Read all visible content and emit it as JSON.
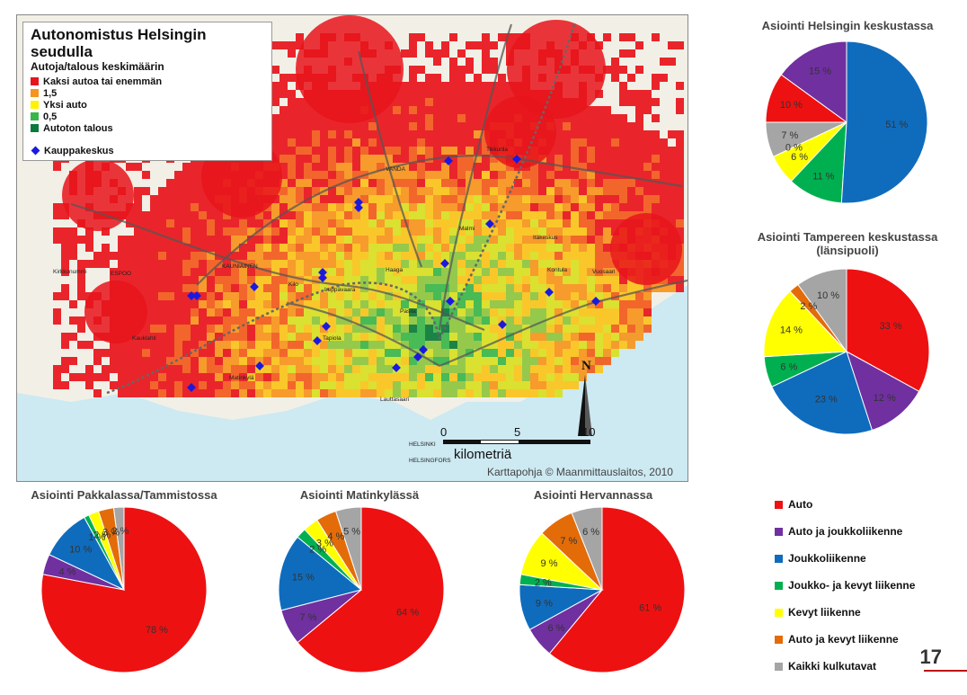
{
  "map": {
    "title": "Autonomistus Helsingin seudulla",
    "subtitle": "Autoja/talous keskimäärin",
    "legend": [
      {
        "label": "Kaksi autoa tai enemmän",
        "color": "#e8141b"
      },
      {
        "label": "1,5",
        "color": "#f7941d"
      },
      {
        "label": "Yksi auto",
        "color": "#fff200"
      },
      {
        "label": "0,5",
        "color": "#39b54a"
      },
      {
        "label": "Autoton talous",
        "color": "#0a7a3a"
      }
    ],
    "mall_label": "Kauppakeskus",
    "mall_color": "#1a1adf",
    "scale": {
      "zero": "0",
      "five": "5",
      "ten": "10",
      "unit": "kilometriä"
    },
    "credit": "Karttapohja © Maanmittauslaitos, 2010",
    "north": "N",
    "places": [
      "VANDA",
      "ESPOO",
      "KAUNIAINEN",
      "HELSINKI",
      "HELSINGFORS",
      "Pasila",
      "Malmi",
      "Tikkurila",
      "Haaga",
      "Kilo",
      "Leppävaara",
      "Matinkylä",
      "Tapiola",
      "Itäkeskus",
      "Kontula",
      "Vuosaari",
      "Lauttasaari",
      "Kauklahti",
      "Kirkkonummi"
    ]
  },
  "charts": [
    {
      "key": "keskusta",
      "title": "Asiointi Helsingin keskustassa",
      "chart_data": {
        "type": "pie",
        "categories": [
          "Auto ja joukkoliikenne",
          "Auto",
          "Kaikki kulkutavat",
          "Auto ja kevyt liikenne",
          "Kevyt liikenne",
          "Joukko- ja kevyt liikenne",
          "Joukkoliikenne"
        ],
        "values": [
          15,
          10,
          7,
          0,
          6,
          11,
          51
        ],
        "labels": [
          "15 %",
          "10 %",
          "7 %",
          "0 %",
          "6 %",
          "11 %",
          "51 %"
        ]
      }
    },
    {
      "key": "tampere",
      "title": "Asiointi Tampereen keskustassa",
      "title2": "(länsipuoli)",
      "chart_data": {
        "type": "pie",
        "categories": [
          "Auto",
          "Auto ja joukkoliikenne",
          "Joukkoliikenne",
          "Joukko- ja kevyt liikenne",
          "Kevyt liikenne",
          "Auto ja kevyt liikenne",
          "Kaikki kulkutavat"
        ],
        "values": [
          33,
          12,
          23,
          6,
          14,
          2,
          10
        ],
        "labels": [
          "33 %",
          "12 %",
          "23 %",
          "6 %",
          "14 %",
          "2 %",
          "10 %"
        ]
      }
    },
    {
      "key": "pakkala",
      "title": "Asiointi Pakkalassa/Tammistossa",
      "chart_data": {
        "type": "pie",
        "categories": [
          "Auto",
          "Auto ja joukkoliikenne",
          "Joukkoliikenne",
          "Joukko- ja kevyt liikenne",
          "Kevyt liikenne",
          "Auto ja kevyt liikenne",
          "Kaikki kulkutavat"
        ],
        "values": [
          78,
          4,
          10,
          1,
          2,
          3,
          2
        ],
        "labels": [
          "78 %",
          "4 %",
          "10 %",
          "1 %",
          "2 %",
          "3 %",
          "2 %"
        ]
      }
    },
    {
      "key": "matinkyla",
      "title": "Asiointi Matinkylässä",
      "chart_data": {
        "type": "pie",
        "categories": [
          "Auto",
          "Auto ja joukkoliikenne",
          "Joukkoliikenne",
          "Joukko- ja kevyt liikenne",
          "Kevyt liikenne",
          "Auto ja kevyt liikenne",
          "Kaikki kulkutavat"
        ],
        "values": [
          64,
          7,
          15,
          2,
          3,
          4,
          5
        ],
        "labels": [
          "64 %",
          "7 %",
          "15 %",
          "2 %",
          "3 %",
          "4 %",
          "5 %"
        ]
      }
    },
    {
      "key": "hervanta",
      "title": "Asiointi Hervannassa",
      "chart_data": {
        "type": "pie",
        "categories": [
          "Auto",
          "Auto ja joukkoliikenne",
          "Joukkoliikenne",
          "Joukko- ja kevyt liikenne",
          "Kevyt liikenne",
          "Auto ja kevyt liikenne",
          "Kaikki kulkutavat"
        ],
        "values": [
          61,
          6,
          9,
          2,
          9,
          7,
          6
        ],
        "labels": [
          "61 %",
          "6 %",
          "9 %",
          "2 %",
          "9 %",
          "7 %",
          "6 %"
        ]
      }
    }
  ],
  "legend": [
    {
      "label": "Auto",
      "color": "#ee1111"
    },
    {
      "label": "Auto ja joukkoliikenne",
      "color": "#7030a0"
    },
    {
      "label": "Joukkoliikenne",
      "color": "#0f6cbd"
    },
    {
      "label": "Joukko- ja kevyt liikenne",
      "color": "#00b050"
    },
    {
      "label": "Kevyt liikenne",
      "color": "#ffff00"
    },
    {
      "label": "Auto ja kevyt liikenne",
      "color": "#e36c09"
    },
    {
      "label": "Kaikki kulkutavat",
      "color": "#a5a5a5"
    }
  ],
  "page_number": "17"
}
